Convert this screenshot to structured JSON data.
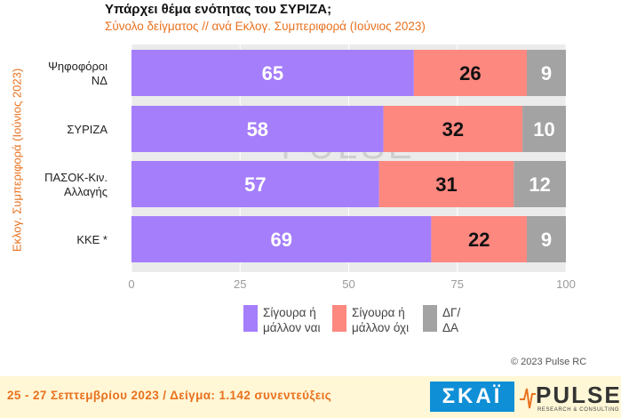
{
  "chart_data": {
    "type": "bar",
    "orientation": "horizontal",
    "stacked": true,
    "title": "Υπάρχει θέμα ενότητας του ΣΥΡΙΖΑ;",
    "subtitle": "Σύνολο δείγματος // ανά Εκλογ. Συμπεριφορά (Ιούνιος 2023)",
    "ylabel": "Εκλογ. Συμπεριφορά (Ιούνιος 2023)",
    "xlim": [
      0,
      100
    ],
    "xticks": [
      "0",
      "25",
      "50",
      "75",
      "100"
    ],
    "grid": true,
    "legend_position": "bottom",
    "categories": [
      "Ψηφοφόροι ΝΔ",
      "ΣΥΡΙΖΑ",
      "ΠΑΣΟΚ-Κιν. Αλλαγής",
      "ΚΚΕ *"
    ],
    "series": [
      {
        "name": "Σίγουρα ή μάλλον ναι",
        "color": "#a57efb",
        "values": [
          65,
          58,
          57,
          69
        ]
      },
      {
        "name": "Σίγουρα ή μάλλον όχι",
        "color": "#fd8880",
        "values": [
          26,
          32,
          31,
          22
        ]
      },
      {
        "name": "ΔΓ/ ΔΑ",
        "color": "#a3a3a3",
        "values": [
          9,
          10,
          12,
          9
        ]
      }
    ]
  },
  "legend": {
    "yes": "Σίγουρα ή\nμάλλον ναι",
    "no": "Σίγουρα ή\nμάλλον όχι",
    "dk": "ΔΓ/\nΔΑ"
  },
  "watermark": {
    "word": "PULSE",
    "sub": "RESEARCH & CONSULTING"
  },
  "copyright": "© 2023 Pulse RC",
  "footer": {
    "fieldwork": "25 - 27 Σεπτεμβρίου 2023 / Δείγμα: 1.142 συνεντεύξεις",
    "skai_logo": "ΣΚΑΪ",
    "pulse_logo": "PULSE",
    "pulse_tagline": "RESEARCH & CONSULTING"
  }
}
